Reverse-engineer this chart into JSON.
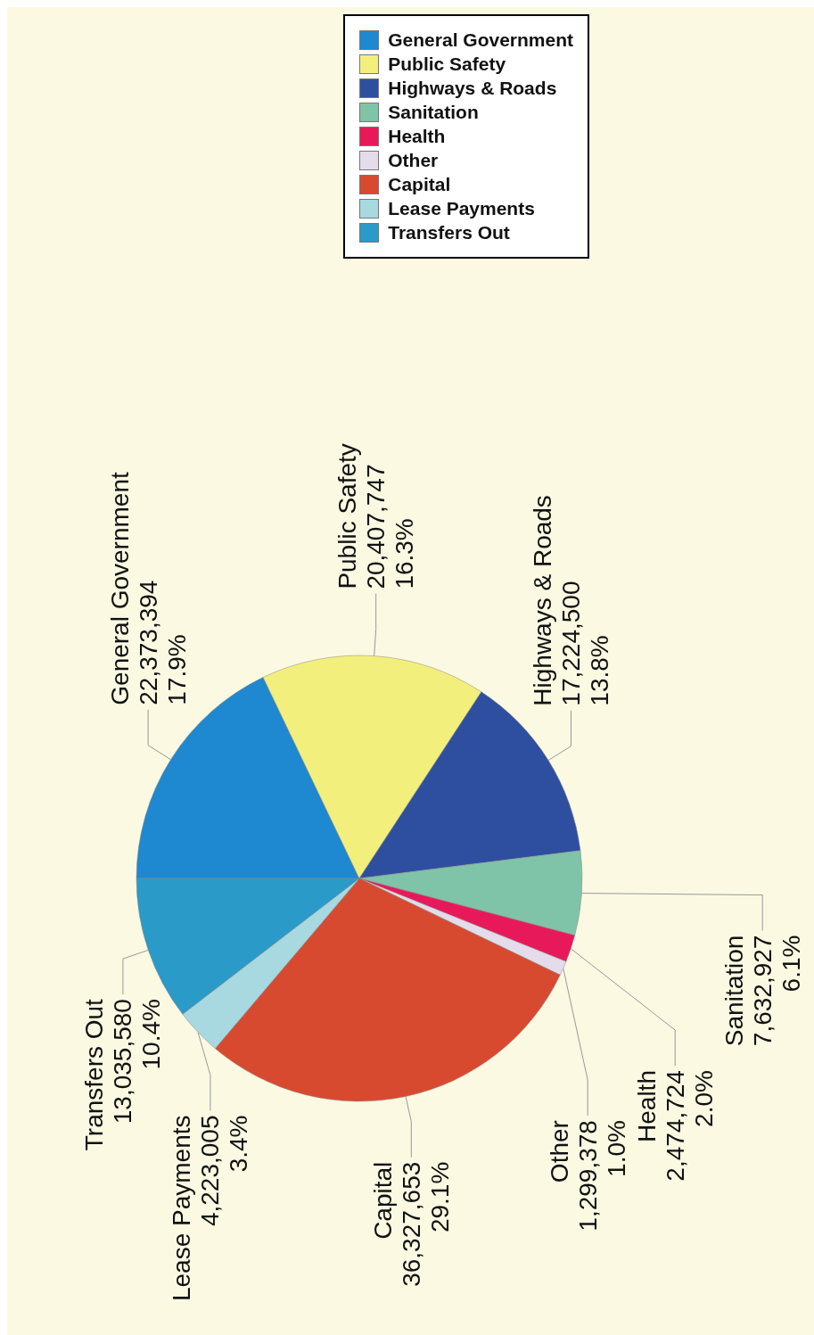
{
  "chart_data": {
    "type": "pie",
    "categories": [
      "General Government",
      "Public Safety",
      "Highways & Roads",
      "Sanitation",
      "Health",
      "Other",
      "Capital",
      "Lease Payments",
      "Transfers Out"
    ],
    "values": [
      22373394,
      20407747,
      17224500,
      7632927,
      2474724,
      1299378,
      36327653,
      4223005,
      13035580
    ],
    "value_labels": [
      "22,373,394\n17.9%",
      "20,407,747\n16.3%",
      "17,224,500\n13.8%",
      "7,632,927\n6.1%",
      "2,474,724\n2.0%",
      "1,299,378\n1.0%",
      "36,327,653\n29.1%",
      "4,223,005\n3.4%",
      "13,035,580\n10.4%"
    ],
    "colors": [
      "#1e88d0",
      "#f3ef7c",
      "#2e4fa0",
      "#7fc4a8",
      "#e8195a",
      "#e4dcea",
      "#d84a30",
      "#a8d8e0",
      "#2a9ac8"
    ],
    "legend": "right"
  }
}
